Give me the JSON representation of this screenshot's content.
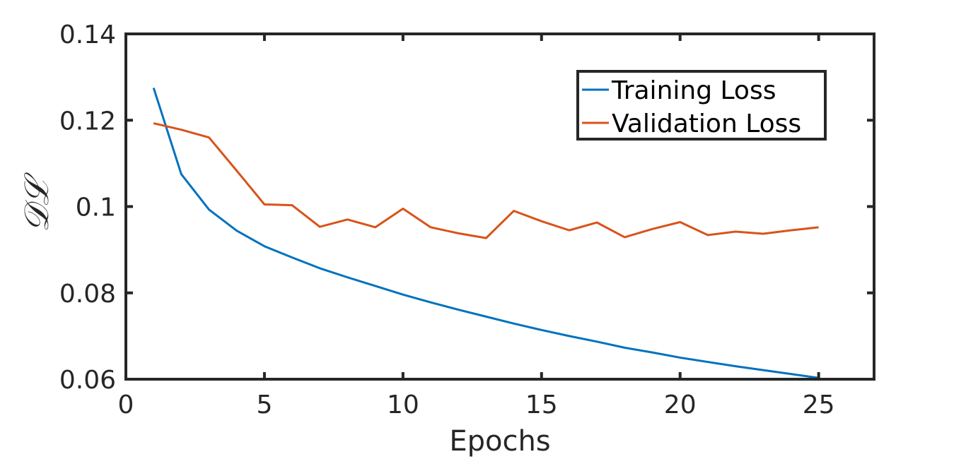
{
  "chart_data": {
    "type": "line",
    "title": "",
    "xlabel": "Epochs",
    "ylabel": "𝒟ℒ",
    "xlim": [
      0,
      27
    ],
    "ylim": [
      0.06,
      0.14
    ],
    "xticks": [
      0,
      5,
      10,
      15,
      20,
      25
    ],
    "xtick_labels": [
      "0",
      "5",
      "10",
      "15",
      "20",
      "25"
    ],
    "yticks": [
      0.06,
      0.08,
      0.1,
      0.12,
      0.14
    ],
    "ytick_labels": [
      "0.06",
      "0.08",
      "0.1",
      "0.12",
      "0.14"
    ],
    "grid": false,
    "legend_position": "top-right",
    "x": [
      1,
      2,
      3,
      4,
      5,
      6,
      7,
      8,
      9,
      10,
      11,
      12,
      13,
      14,
      15,
      16,
      17,
      18,
      19,
      20,
      21,
      22,
      23,
      24,
      25
    ],
    "series": [
      {
        "name": "Training Loss",
        "color": "#0072bd",
        "values": [
          0.1275,
          0.1075,
          0.0993,
          0.0944,
          0.0908,
          0.0882,
          0.0857,
          0.0836,
          0.0816,
          0.0796,
          0.0778,
          0.0761,
          0.0745,
          0.0729,
          0.0714,
          0.07,
          0.0687,
          0.0673,
          0.0662,
          0.065,
          0.064,
          0.063,
          0.0621,
          0.0612,
          0.0603
        ]
      },
      {
        "name": "Validation Loss",
        "color": "#d95319",
        "values": [
          0.1193,
          0.1178,
          0.116,
          0.1083,
          0.1005,
          0.1003,
          0.0953,
          0.097,
          0.0952,
          0.0995,
          0.0952,
          0.0938,
          0.0927,
          0.099,
          0.0966,
          0.0945,
          0.0963,
          0.0929,
          0.0948,
          0.0964,
          0.0934,
          0.0942,
          0.0937,
          0.0945,
          0.0952
        ]
      }
    ]
  }
}
